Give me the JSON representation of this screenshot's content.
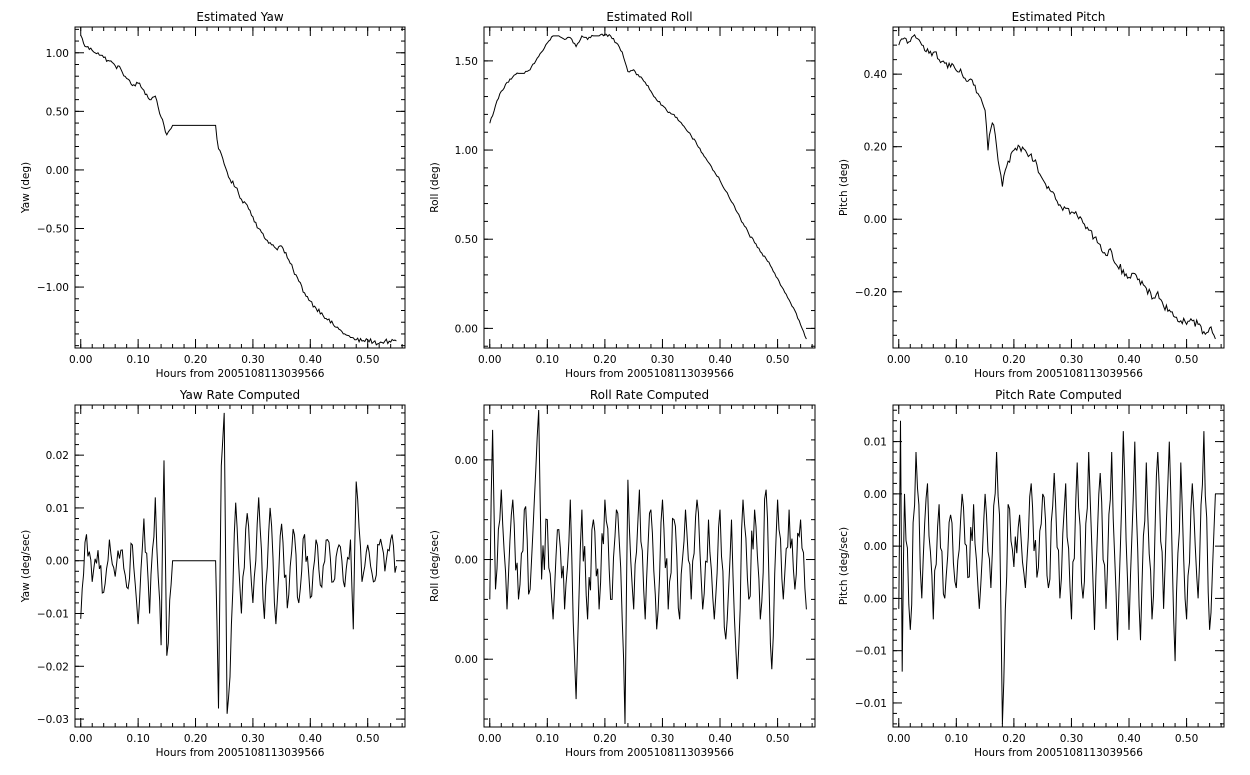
{
  "colors": {
    "background": "#ffffff",
    "line": "#000000"
  },
  "chart_data": [
    {
      "type": "line",
      "title": "Estimated Yaw",
      "xlabel": "Hours from 2005108113039566",
      "ylabel": "Yaw (deg)",
      "xlim": [
        -0.01,
        0.565
      ],
      "ylim": [
        -1.52,
        1.22
      ],
      "xticks": [
        0.0,
        0.1,
        0.2,
        0.3,
        0.4,
        0.5
      ],
      "xtick_labels": [
        "0.00",
        "0.10",
        "0.20",
        "0.30",
        "0.40",
        "0.50"
      ],
      "yticks": [
        1.0,
        0.5,
        0.0,
        -0.5,
        -1.0
      ],
      "ytick_labels": [
        "1.00",
        "0.50",
        "0.00",
        "−0.50",
        "−1.00"
      ],
      "grid": false,
      "series": [
        {
          "x": [
            0.0,
            0.005,
            0.01,
            0.02,
            0.03,
            0.04,
            0.05,
            0.06,
            0.07,
            0.08,
            0.09,
            0.1,
            0.11,
            0.12,
            0.13,
            0.14,
            0.145,
            0.15,
            0.155,
            0.16,
            0.18,
            0.2,
            0.22,
            0.235,
            0.24,
            0.25,
            0.26,
            0.27,
            0.28,
            0.29,
            0.3,
            0.31,
            0.32,
            0.33,
            0.34,
            0.35,
            0.36,
            0.37,
            0.38,
            0.39,
            0.4,
            0.41,
            0.42,
            0.43,
            0.44,
            0.45,
            0.46,
            0.47,
            0.48,
            0.49,
            0.5,
            0.51,
            0.52,
            0.53,
            0.54,
            0.55
          ],
          "y": [
            1.15,
            1.08,
            1.05,
            1.02,
            1.0,
            0.96,
            0.93,
            0.89,
            0.86,
            0.78,
            0.72,
            0.74,
            0.68,
            0.6,
            0.63,
            0.45,
            0.38,
            0.3,
            0.34,
            0.38,
            0.38,
            0.38,
            0.38,
            0.38,
            0.18,
            0.05,
            -0.08,
            -0.15,
            -0.25,
            -0.3,
            -0.4,
            -0.5,
            -0.58,
            -0.62,
            -0.67,
            -0.65,
            -0.75,
            -0.85,
            -0.95,
            -1.05,
            -1.12,
            -1.18,
            -1.22,
            -1.28,
            -1.32,
            -1.36,
            -1.4,
            -1.43,
            -1.45,
            -1.46,
            -1.45,
            -1.47,
            -1.48,
            -1.46,
            -1.47,
            -1.46
          ],
          "jitter": 0.02
        }
      ]
    },
    {
      "type": "line",
      "title": "Estimated Roll",
      "xlabel": "Hours from 2005108113039566",
      "ylabel": "Roll (deg)",
      "xlim": [
        -0.01,
        0.565
      ],
      "ylim": [
        -0.11,
        1.69
      ],
      "xticks": [
        0.0,
        0.1,
        0.2,
        0.3,
        0.4,
        0.5
      ],
      "xtick_labels": [
        "0.00",
        "0.10",
        "0.20",
        "0.30",
        "0.40",
        "0.50"
      ],
      "yticks": [
        1.5,
        1.0,
        0.5,
        0.0
      ],
      "ytick_labels": [
        "1.50",
        "1.00",
        "0.50",
        "0.00"
      ],
      "grid": false,
      "series": [
        {
          "x": [
            0.0,
            0.01,
            0.02,
            0.03,
            0.04,
            0.05,
            0.06,
            0.07,
            0.08,
            0.09,
            0.1,
            0.11,
            0.12,
            0.13,
            0.14,
            0.15,
            0.16,
            0.17,
            0.18,
            0.19,
            0.2,
            0.21,
            0.22,
            0.23,
            0.24,
            0.25,
            0.26,
            0.27,
            0.28,
            0.29,
            0.3,
            0.31,
            0.32,
            0.33,
            0.34,
            0.35,
            0.36,
            0.37,
            0.38,
            0.39,
            0.4,
            0.41,
            0.42,
            0.43,
            0.44,
            0.45,
            0.46,
            0.47,
            0.48,
            0.49,
            0.5,
            0.51,
            0.52,
            0.53,
            0.54,
            0.55
          ],
          "y": [
            1.15,
            1.25,
            1.33,
            1.38,
            1.41,
            1.43,
            1.43,
            1.45,
            1.5,
            1.55,
            1.6,
            1.64,
            1.64,
            1.62,
            1.63,
            1.58,
            1.64,
            1.62,
            1.64,
            1.64,
            1.65,
            1.64,
            1.6,
            1.55,
            1.44,
            1.45,
            1.41,
            1.38,
            1.33,
            1.28,
            1.25,
            1.21,
            1.2,
            1.16,
            1.12,
            1.08,
            1.03,
            0.98,
            0.93,
            0.88,
            0.83,
            0.77,
            0.71,
            0.65,
            0.59,
            0.53,
            0.48,
            0.43,
            0.39,
            0.34,
            0.28,
            0.22,
            0.16,
            0.1,
            0.02,
            -0.06
          ],
          "jitter": 0.008
        }
      ]
    },
    {
      "type": "line",
      "title": "Estimated Pitch",
      "xlabel": "Hours from 2005108113039566",
      "ylabel": "Pitch (deg)",
      "xlim": [
        -0.01,
        0.565
      ],
      "ylim": [
        -0.355,
        0.53
      ],
      "xticks": [
        0.0,
        0.1,
        0.2,
        0.3,
        0.4,
        0.5
      ],
      "xtick_labels": [
        "0.00",
        "0.10",
        "0.20",
        "0.30",
        "0.40",
        "0.50"
      ],
      "yticks": [
        0.4,
        0.2,
        0.0,
        -0.2
      ],
      "ytick_labels": [
        "0.40",
        "0.20",
        "0.00",
        "−0.20"
      ],
      "grid": false,
      "series": [
        {
          "x": [
            0.0,
            0.01,
            0.02,
            0.03,
            0.04,
            0.05,
            0.06,
            0.07,
            0.08,
            0.09,
            0.1,
            0.11,
            0.12,
            0.13,
            0.14,
            0.15,
            0.155,
            0.16,
            0.165,
            0.17,
            0.175,
            0.18,
            0.19,
            0.2,
            0.21,
            0.22,
            0.23,
            0.24,
            0.25,
            0.26,
            0.27,
            0.28,
            0.29,
            0.3,
            0.31,
            0.32,
            0.33,
            0.34,
            0.35,
            0.36,
            0.37,
            0.38,
            0.39,
            0.4,
            0.41,
            0.42,
            0.43,
            0.44,
            0.45,
            0.46,
            0.47,
            0.48,
            0.49,
            0.5,
            0.51,
            0.52,
            0.53,
            0.54,
            0.55
          ],
          "y": [
            0.48,
            0.5,
            0.49,
            0.5,
            0.48,
            0.47,
            0.46,
            0.44,
            0.43,
            0.42,
            0.41,
            0.4,
            0.38,
            0.37,
            0.34,
            0.3,
            0.19,
            0.25,
            0.26,
            0.2,
            0.14,
            0.09,
            0.16,
            0.19,
            0.2,
            0.19,
            0.18,
            0.15,
            0.11,
            0.09,
            0.07,
            0.04,
            0.03,
            0.02,
            0.01,
            -0.01,
            -0.03,
            -0.05,
            -0.07,
            -0.1,
            -0.09,
            -0.13,
            -0.14,
            -0.16,
            -0.15,
            -0.18,
            -0.19,
            -0.22,
            -0.2,
            -0.24,
            -0.25,
            -0.27,
            -0.28,
            -0.29,
            -0.28,
            -0.29,
            -0.31,
            -0.3,
            -0.33
          ],
          "jitter": 0.012
        }
      ]
    },
    {
      "type": "line",
      "title": "Yaw Rate Computed",
      "xlabel": "Hours from 2005108113039566",
      "ylabel": "Yaw (deg/sec)",
      "xlim": [
        -0.01,
        0.565
      ],
      "ylim": [
        -0.0315,
        0.0295
      ],
      "xticks": [
        0.0,
        0.1,
        0.2,
        0.3,
        0.4,
        0.5
      ],
      "xtick_labels": [
        "0.00",
        "0.10",
        "0.20",
        "0.30",
        "0.40",
        "0.50"
      ],
      "yticks": [
        0.02,
        0.01,
        0.0,
        -0.01,
        -0.02,
        -0.03
      ],
      "ytick_labels": [
        "0.02",
        "0.01",
        "0.00",
        "−0.01",
        "−0.02",
        "−0.03"
      ],
      "grid": false,
      "series": [
        {
          "x": [
            0.0,
            0.01,
            0.02,
            0.03,
            0.04,
            0.05,
            0.06,
            0.07,
            0.08,
            0.09,
            0.1,
            0.11,
            0.12,
            0.13,
            0.14,
            0.145,
            0.15,
            0.16,
            0.2,
            0.235,
            0.24,
            0.245,
            0.25,
            0.255,
            0.26,
            0.27,
            0.28,
            0.29,
            0.3,
            0.31,
            0.32,
            0.33,
            0.34,
            0.35,
            0.36,
            0.37,
            0.38,
            0.39,
            0.4,
            0.41,
            0.42,
            0.43,
            0.44,
            0.45,
            0.46,
            0.47,
            0.475,
            0.48,
            0.49,
            0.5,
            0.51,
            0.52,
            0.53,
            0.54,
            0.55
          ],
          "y": [
            -0.011,
            0.005,
            -0.004,
            0.002,
            -0.006,
            0.004,
            -0.003,
            0.002,
            -0.005,
            0.003,
            -0.012,
            0.008,
            -0.01,
            0.012,
            -0.016,
            0.019,
            -0.018,
            0.0,
            0.0,
            0.0,
            -0.028,
            0.018,
            0.028,
            -0.029,
            -0.022,
            0.011,
            -0.01,
            0.009,
            -0.008,
            0.012,
            -0.011,
            0.01,
            -0.012,
            0.007,
            -0.009,
            0.006,
            -0.008,
            0.005,
            -0.007,
            0.004,
            -0.005,
            0.004,
            -0.004,
            0.003,
            -0.005,
            0.004,
            -0.013,
            0.015,
            -0.004,
            0.003,
            -0.004,
            0.003,
            -0.002,
            0.004,
            -0.001
          ],
          "jitter": 0.0025
        }
      ]
    },
    {
      "type": "line",
      "title": "Roll Rate Computed",
      "xlabel": "Hours from 2005108113039566",
      "ylabel": "Roll (deg/sec)",
      "xlim": [
        -0.01,
        0.565
      ],
      "ylim": [
        -0.0168,
        0.0155
      ],
      "xticks": [
        0.0,
        0.1,
        0.2,
        0.3,
        0.4,
        0.5
      ],
      "xtick_labels": [
        "0.00",
        "0.10",
        "0.20",
        "0.30",
        "0.40",
        "0.50"
      ],
      "yticks": [
        0.01,
        0.0,
        -0.01
      ],
      "ytick_labels": [
        "0.00",
        "0.00",
        "0.00"
      ],
      "grid": false,
      "series": [
        {
          "x": [
            0.0,
            0.005,
            0.01,
            0.02,
            0.03,
            0.04,
            0.05,
            0.06,
            0.07,
            0.08,
            0.085,
            0.09,
            0.1,
            0.11,
            0.12,
            0.13,
            0.14,
            0.15,
            0.16,
            0.17,
            0.18,
            0.19,
            0.2,
            0.21,
            0.22,
            0.23,
            0.235,
            0.24,
            0.25,
            0.26,
            0.27,
            0.28,
            0.29,
            0.3,
            0.31,
            0.32,
            0.33,
            0.34,
            0.35,
            0.36,
            0.37,
            0.38,
            0.39,
            0.4,
            0.41,
            0.42,
            0.43,
            0.44,
            0.45,
            0.46,
            0.47,
            0.48,
            0.49,
            0.5,
            0.51,
            0.52,
            0.53,
            0.54,
            0.55
          ],
          "y": [
            -0.004,
            0.013,
            -0.003,
            0.007,
            -0.005,
            0.006,
            -0.004,
            0.005,
            -0.003,
            0.009,
            0.015,
            -0.002,
            0.004,
            -0.006,
            0.003,
            -0.005,
            0.006,
            -0.014,
            0.005,
            -0.006,
            0.004,
            -0.005,
            0.006,
            -0.004,
            0.005,
            -0.006,
            -0.0165,
            0.008,
            -0.005,
            0.007,
            -0.006,
            0.005,
            -0.007,
            0.006,
            -0.005,
            0.004,
            -0.006,
            0.005,
            -0.004,
            0.006,
            -0.005,
            0.004,
            -0.006,
            0.005,
            -0.008,
            0.004,
            -0.012,
            0.006,
            -0.004,
            0.005,
            -0.006,
            0.007,
            -0.011,
            0.006,
            -0.004,
            0.005,
            -0.003,
            0.004,
            -0.005
          ],
          "jitter": 0.0025
        }
      ]
    },
    {
      "type": "line",
      "title": "Pitch Rate Computed",
      "xlabel": "Hours from 2005108113039566",
      "ylabel": "Pitch (deg/sec)",
      "xlim": [
        -0.01,
        0.565
      ],
      "ylim": [
        -0.0173,
        0.0135
      ],
      "xticks": [
        0.0,
        0.1,
        0.2,
        0.3,
        0.4,
        0.5
      ],
      "xtick_labels": [
        "0.00",
        "0.10",
        "0.20",
        "0.30",
        "0.40",
        "0.50"
      ],
      "yticks": [
        0.01,
        0.005,
        0.0,
        -0.005,
        -0.01,
        -0.015
      ],
      "ytick_labels": [
        "0.01",
        "0.00",
        "0.00",
        "0.00",
        "−0.01",
        "−0.01"
      ],
      "grid": false,
      "series": [
        {
          "x": [
            0.0,
            0.003,
            0.006,
            0.01,
            0.02,
            0.03,
            0.04,
            0.05,
            0.06,
            0.07,
            0.08,
            0.09,
            0.1,
            0.11,
            0.12,
            0.13,
            0.14,
            0.15,
            0.16,
            0.17,
            0.175,
            0.18,
            0.19,
            0.2,
            0.21,
            0.22,
            0.23,
            0.24,
            0.25,
            0.26,
            0.27,
            0.28,
            0.29,
            0.3,
            0.31,
            0.32,
            0.33,
            0.34,
            0.35,
            0.36,
            0.37,
            0.38,
            0.39,
            0.4,
            0.41,
            0.42,
            0.43,
            0.44,
            0.45,
            0.46,
            0.47,
            0.48,
            0.49,
            0.5,
            0.51,
            0.52,
            0.53,
            0.54,
            0.55
          ],
          "y": [
            -0.006,
            0.012,
            -0.012,
            0.005,
            -0.008,
            0.009,
            -0.005,
            0.006,
            -0.007,
            0.004,
            -0.005,
            0.003,
            -0.004,
            0.005,
            -0.003,
            0.004,
            -0.006,
            0.005,
            -0.004,
            0.009,
            0.003,
            -0.017,
            0.004,
            -0.002,
            0.003,
            -0.004,
            0.006,
            -0.003,
            0.005,
            -0.004,
            0.007,
            -0.005,
            0.006,
            -0.007,
            0.008,
            -0.005,
            0.009,
            -0.008,
            0.007,
            -0.006,
            0.009,
            -0.009,
            0.011,
            -0.008,
            0.01,
            -0.009,
            0.008,
            -0.007,
            0.009,
            -0.006,
            0.01,
            -0.011,
            0.008,
            -0.007,
            0.006,
            -0.005,
            0.011,
            -0.008,
            0.005
          ],
          "jitter": 0.002
        }
      ]
    }
  ]
}
